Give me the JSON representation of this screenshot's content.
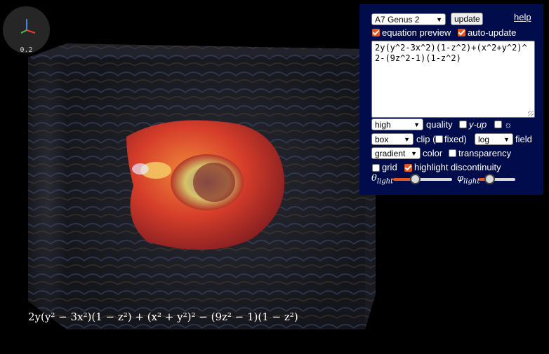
{
  "axes_widget": {
    "zoom": "0.2",
    "icon": "axes-icon"
  },
  "panel": {
    "preset": "A7 Genus 2",
    "update_label": "update",
    "help_label": "help",
    "equation_preview": {
      "label": "equation preview",
      "checked": true
    },
    "auto_update": {
      "label": "auto-update",
      "checked": true
    },
    "equation": "2y(y^2-3x^2)(1-z^2)+(x^2+y^2)^2-(9z^2-1)(1-z^2)",
    "quality": {
      "value": "high",
      "label": "quality"
    },
    "y_up": {
      "label": "y-up",
      "checked": false
    },
    "light_toggle": {
      "label": "☼",
      "checked": false
    },
    "clip": {
      "value": "box",
      "label": "clip (",
      "fixed_label": "fixed)",
      "fixed_checked": false
    },
    "field": {
      "value": "log",
      "label": "field"
    },
    "color": {
      "value": "gradient",
      "label": "color"
    },
    "transparency": {
      "label": "transparency",
      "checked": false
    },
    "grid": {
      "label": "grid",
      "checked": false
    },
    "highlight": {
      "label": "highlight discontinuity",
      "checked": true
    },
    "theta_light": {
      "symbol": "θ",
      "sub": "light",
      "value": 0.37
    },
    "phi_light": {
      "symbol": "φ",
      "sub": "light",
      "value": 0.28
    }
  },
  "formula_display": "2y(y² − 3x²)(1 − z²) + (x² + y²)² − (9z² − 1)(1 − z²)",
  "colors": {
    "panel_bg": "#000c4c",
    "accent": "#e8541a",
    "surface": "#d9402a"
  }
}
